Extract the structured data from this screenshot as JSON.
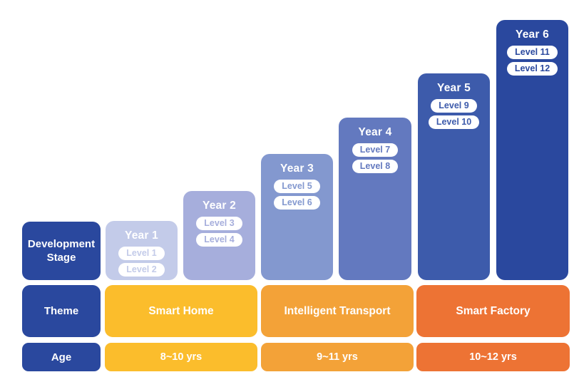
{
  "labels": {
    "development_stage": "Development Stage",
    "theme": "Theme",
    "age": "Age"
  },
  "years": [
    {
      "label": "Year 1",
      "levels": [
        "Level 1",
        "Level 2"
      ],
      "color": "#C3CBE9"
    },
    {
      "label": "Year 2",
      "levels": [
        "Level 3",
        "Level 4"
      ],
      "color": "#A6AEDC"
    },
    {
      "label": "Year 3",
      "levels": [
        "Level 5",
        "Level 6"
      ],
      "color": "#8398CF"
    },
    {
      "label": "Year 4",
      "levels": [
        "Level 7",
        "Level 8"
      ],
      "color": "#6379BF"
    },
    {
      "label": "Year 5",
      "levels": [
        "Level 9",
        "Level 10"
      ],
      "color": "#3D5BAB"
    },
    {
      "label": "Year 6",
      "levels": [
        "Level 11",
        "Level 12"
      ],
      "color": "#2A489E"
    }
  ],
  "themes": [
    {
      "label": "Smart Home",
      "age": "8~10 yrs",
      "color": "#FBBD2C"
    },
    {
      "label": "Intelligent Transport",
      "age": "9~11 yrs",
      "color": "#F3A238"
    },
    {
      "label": "Smart Factory",
      "age": "10~12 yrs",
      "color": "#ED7334"
    }
  ],
  "colors": {
    "header_blue": "#2A489E",
    "pill_background": "#FFFFFF",
    "page_background": "#FFFFFF"
  }
}
